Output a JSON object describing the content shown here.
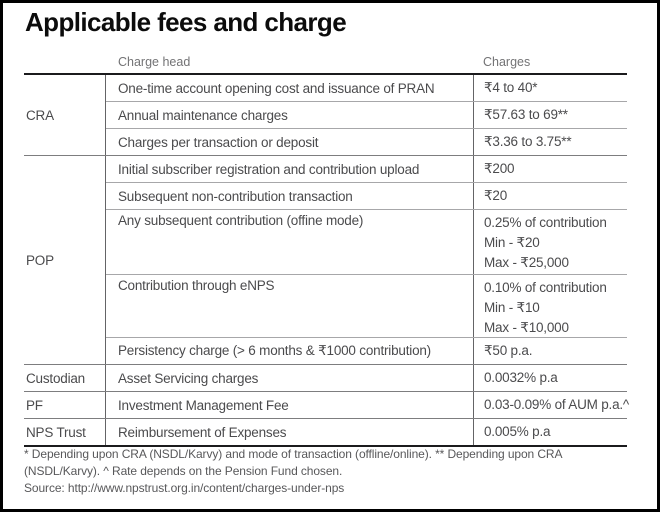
{
  "title": "Applicable fees and charge",
  "table": {
    "col_headers": [
      "Charge head",
      "Charges"
    ],
    "sections": [
      {
        "entity": "CRA",
        "rows": [
          {
            "head": "One-time account opening cost and issuance of PRAN",
            "charge": "₹4 to 40*"
          },
          {
            "head": "Annual maintenance charges",
            "charge": "₹57.63 to 69**"
          },
          {
            "head": "Charges per transaction or deposit",
            "charge": "₹3.36 to 3.75**"
          }
        ]
      },
      {
        "entity": "POP",
        "rows": [
          {
            "head": "Initial subscriber registration and contribution upload",
            "charge": "₹200"
          },
          {
            "head": "Subsequent non-contribution transaction",
            "charge": "₹20"
          },
          {
            "head": "Any subsequent contribution (offine mode)",
            "charge": "0.25% of contribution\nMin - ₹20\nMax - ₹25,000"
          },
          {
            "head": "Contribution through eNPS",
            "charge": "0.10% of contribution\nMin - ₹10\nMax - ₹10,000"
          },
          {
            "head": "Persistency charge (> 6 months & ₹1000 contribution)",
            "charge": "₹50 p.a."
          }
        ]
      },
      {
        "entity": "Custodian",
        "rows": [
          {
            "head": "Asset Servicing charges",
            "charge": "0.0032% p.a"
          }
        ]
      },
      {
        "entity": "PF",
        "rows": [
          {
            "head": "Investment Management Fee",
            "charge": "0.03-0.09% of AUM p.a.^"
          }
        ]
      },
      {
        "entity": "NPS Trust",
        "rows": [
          {
            "head": "Reimbursement of Expenses",
            "charge": "0.005% p.a"
          }
        ]
      }
    ]
  },
  "footnotes": {
    "note": "* Depending upon CRA (NSDL/Karvy) and mode of transaction (offline/online). ** Depending upon CRA (NSDL/Karvy). ^ Rate depends on the Pension Fund chosen.",
    "source": "Source: http://www.npstrust.org.in/content/charges-under-nps"
  },
  "colors": {
    "frame": "#000000",
    "title_text": "#0c0c0c",
    "body_text": "#4b4b4d",
    "muted_text": "#737375",
    "thick_rule": "#1b1b1d",
    "thin_rule": "#a7a7a9"
  }
}
